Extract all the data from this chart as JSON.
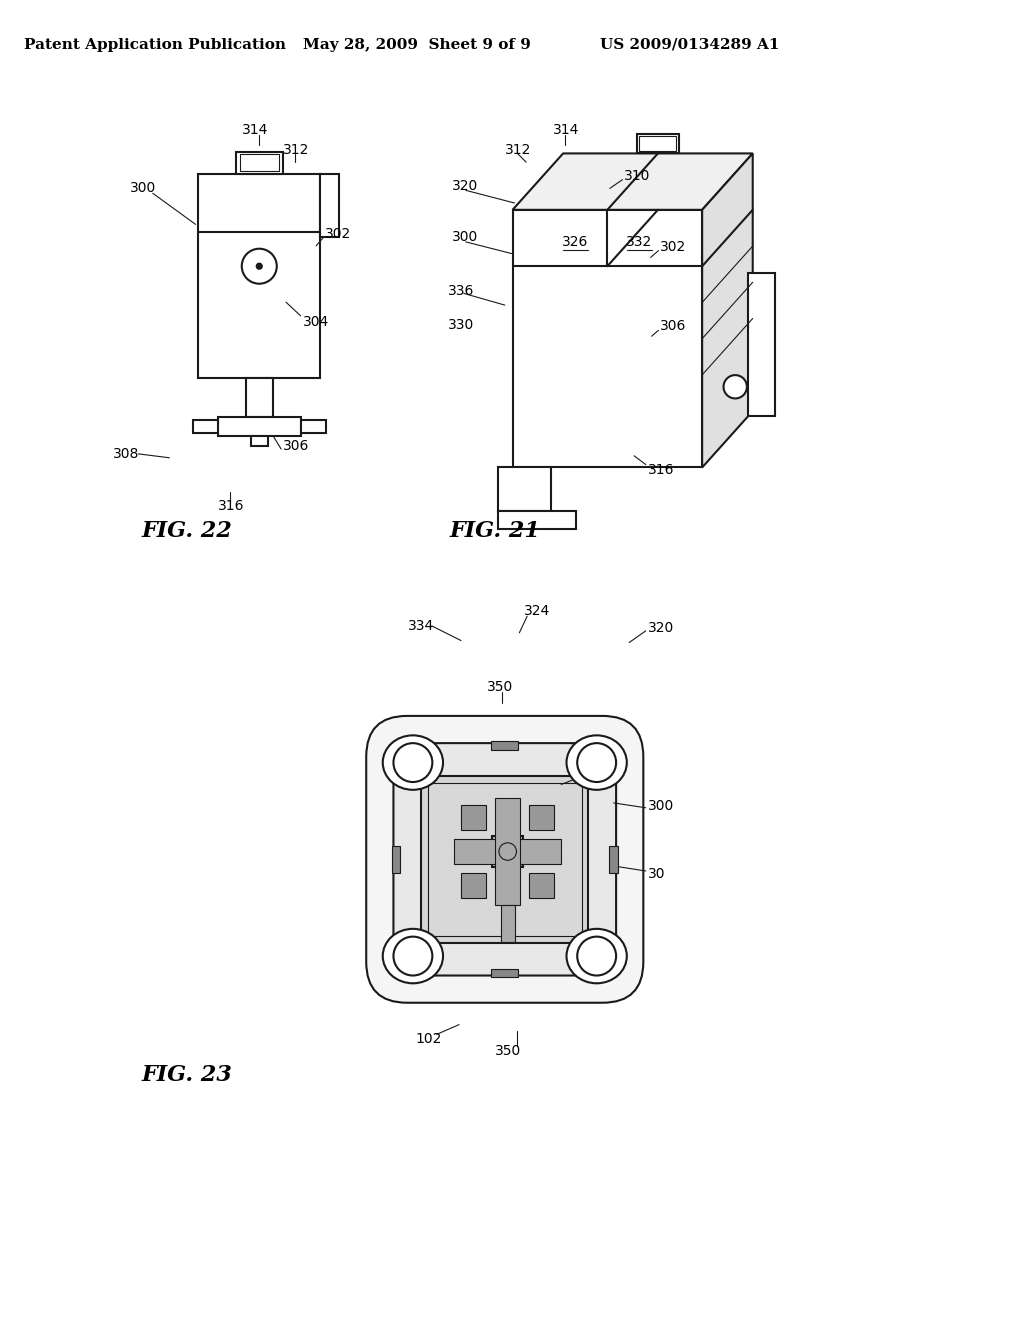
{
  "bg_color": "#ffffff",
  "header_left": "Patent Application Publication",
  "header_mid": "May 28, 2009  Sheet 9 of 9",
  "header_right": "US 2009/0134289 A1",
  "fig22_label": "FIG. 22",
  "fig21_label": "FIG. 21",
  "fig23_label": "FIG. 23",
  "line_color": "#1a1a1a",
  "text_color": "#000000",
  "font_size_header": 11,
  "font_size_refnum": 10
}
